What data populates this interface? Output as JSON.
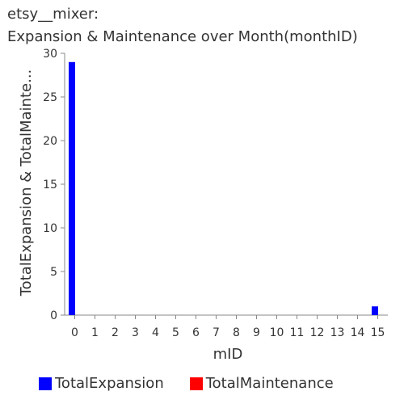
{
  "chart_data": {
    "type": "bar",
    "title_line1": "etsy__mixer:",
    "title_line2": "Expansion & Maintenance over Month(monthID)",
    "xlabel": "mID",
    "ylabel": "TotalExpansion & TotalMainte...",
    "categories": [
      "0",
      "1",
      "2",
      "3",
      "4",
      "5",
      "6",
      "7",
      "8",
      "9",
      "10",
      "11",
      "12",
      "13",
      "14",
      "15"
    ],
    "series": [
      {
        "name": "TotalExpansion",
        "color": "#0000ff",
        "values": [
          29,
          0,
          0,
          0,
          0,
          0,
          0,
          0,
          0,
          0,
          0,
          0,
          0,
          0,
          0,
          1
        ]
      },
      {
        "name": "TotalMaintenance",
        "color": "#ff0000",
        "values": [
          0,
          0,
          0,
          0,
          0,
          0,
          0,
          0,
          0,
          0,
          0,
          0,
          0,
          0,
          0,
          0
        ]
      }
    ],
    "ylim": [
      0,
      30
    ],
    "yticks": [
      0,
      5,
      10,
      15,
      20,
      25,
      30
    ],
    "grid": false,
    "legend_position": "bottom"
  }
}
